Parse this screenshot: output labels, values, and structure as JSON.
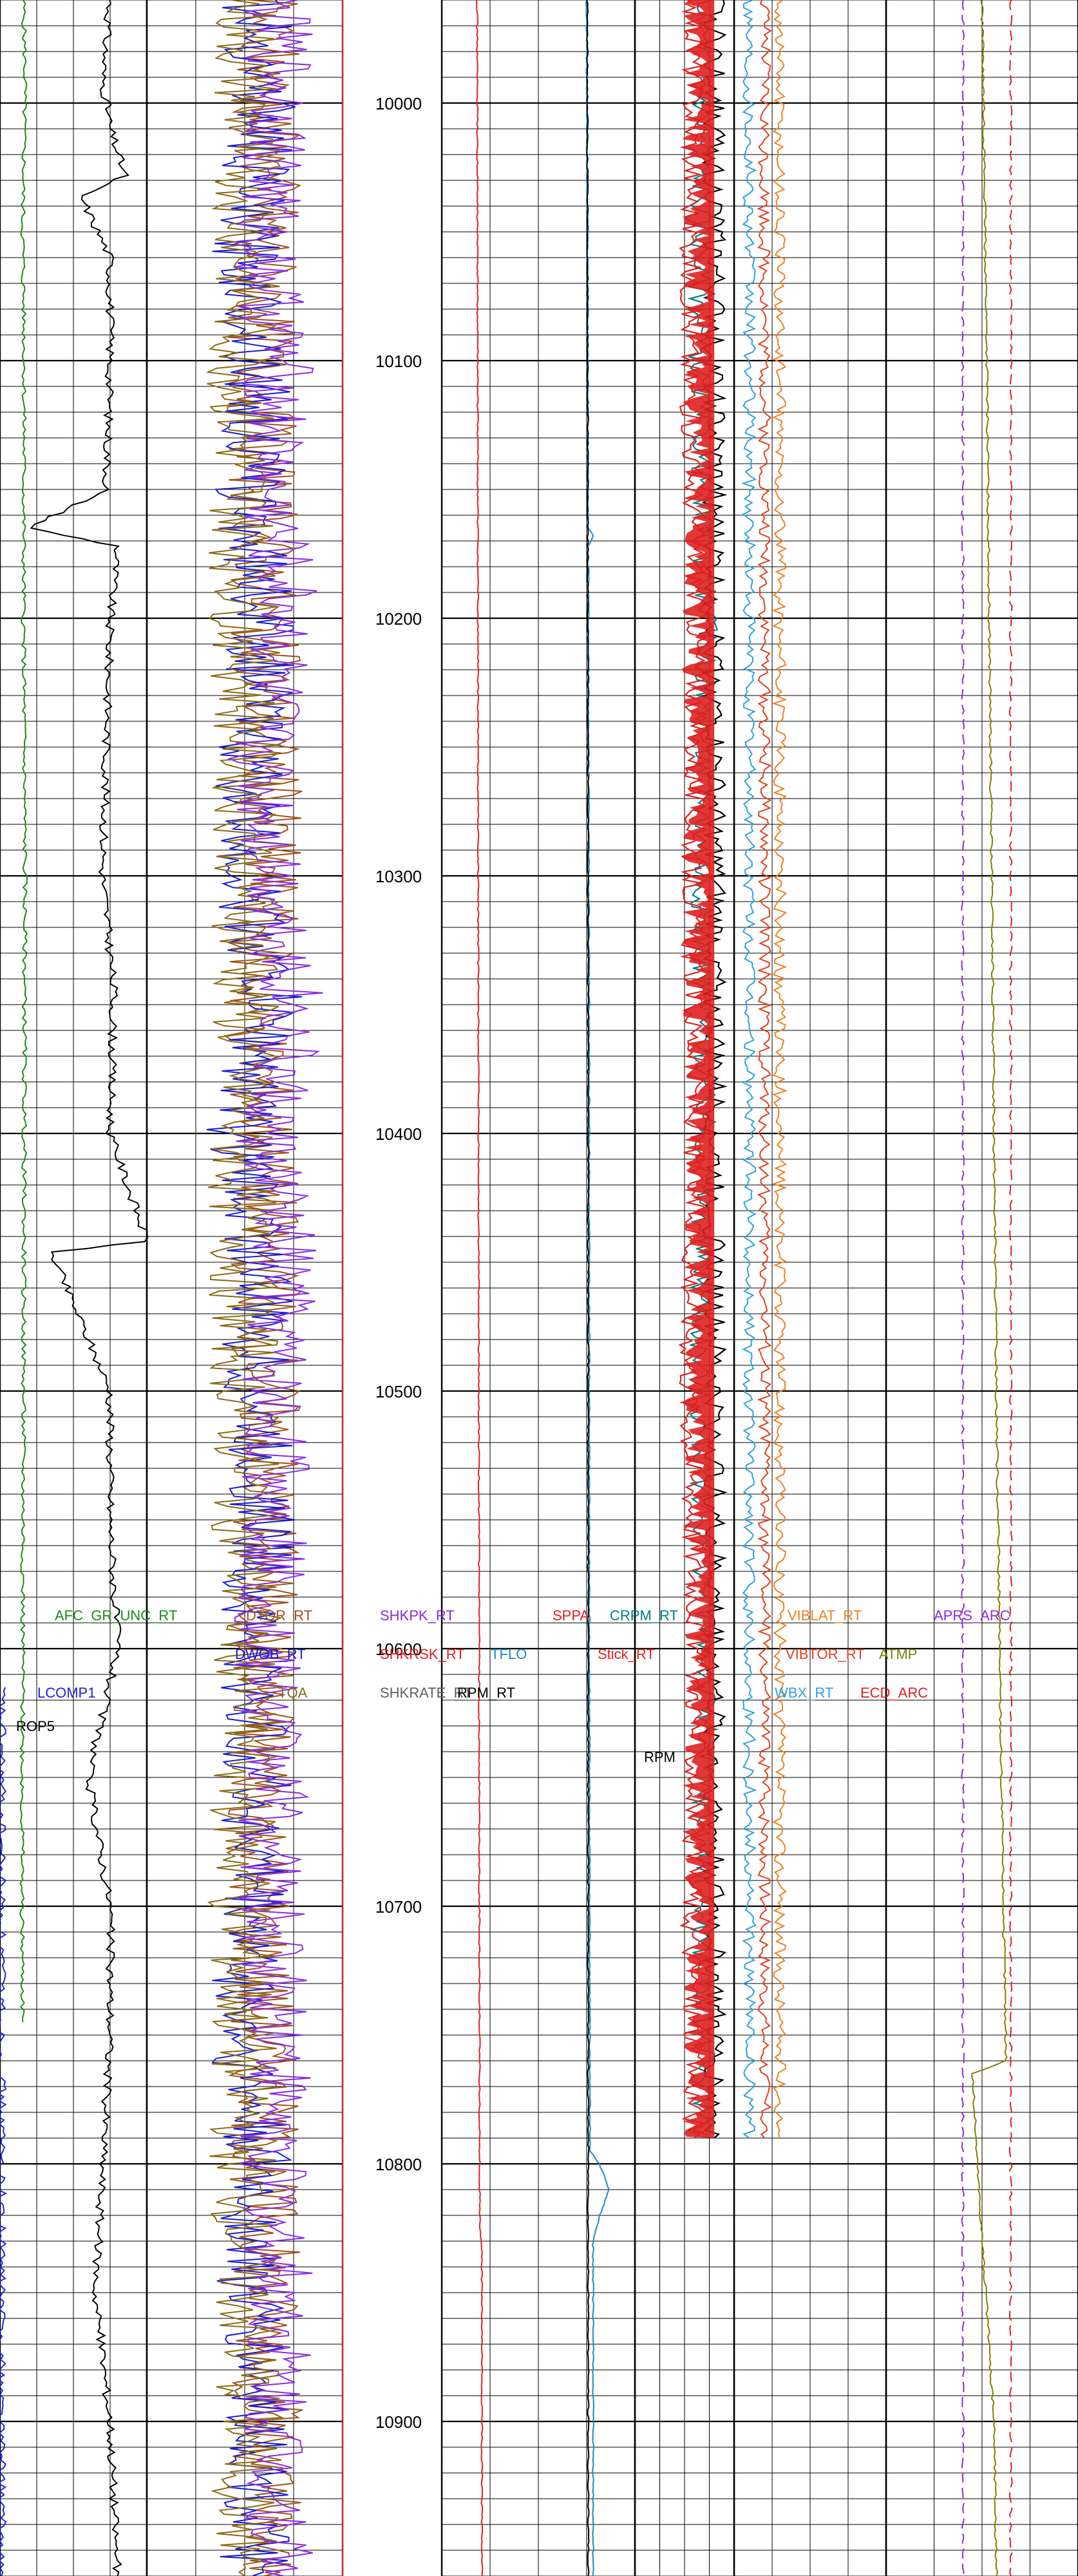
{
  "chart_data": {
    "type": "line",
    "title": "",
    "xlabel": "",
    "ylabel": "",
    "depth_range": [
      9960,
      10960
    ],
    "depth_ticks": [
      10000,
      10100,
      10200,
      10300,
      10400,
      10500,
      10600,
      10700,
      10800,
      10900
    ],
    "tracks": [
      {
        "name": "track-1",
        "curves": [
          {
            "name": "AFC_GR_UNC_RT",
            "color": "#1a8a1a",
            "label_depth": 10587,
            "points": [
              [
                9960,
                32
              ],
              [
                9990,
                34
              ],
              [
                10050,
                31
              ],
              [
                10100,
                33
              ],
              [
                10200,
                32
              ],
              [
                10300,
                34
              ],
              [
                10400,
                33
              ],
              [
                10500,
                32
              ],
              [
                10600,
                31
              ],
              [
                10700,
                30
              ],
              [
                10745,
                31
              ]
            ]
          },
          {
            "name": "LCOMP1",
            "color": "#2020e0",
            "label_depth": 10617,
            "points": [
              [
                10615,
                2
              ],
              [
                10960,
                2
              ]
            ]
          },
          {
            "name": "ROP5",
            "color": "#000000",
            "label_depth": 10630,
            "points": [
              [
                9960,
                150
              ],
              [
                9990,
                140
              ],
              [
                10010,
                150
              ],
              [
                10028,
                170
              ],
              [
                10036,
                110
              ],
              [
                10060,
                150
              ],
              [
                10100,
                150
              ],
              [
                10150,
                145
              ],
              [
                10165,
                40
              ],
              [
                10172,
                160
              ],
              [
                10200,
                150
              ],
              [
                10300,
                140
              ],
              [
                10345,
                155
              ],
              [
                10400,
                150
              ],
              [
                10442,
                200
              ],
              [
                10446,
                70
              ],
              [
                10500,
                150
              ],
              [
                10550,
                150
              ],
              [
                10600,
                160
              ],
              [
                10650,
                120
              ],
              [
                10700,
                150
              ],
              [
                10750,
                150
              ],
              [
                10800,
                140
              ],
              [
                10850,
                130
              ],
              [
                10900,
                150
              ],
              [
                10960,
                160
              ]
            ]
          }
        ]
      },
      {
        "name": "track-2",
        "curves": [
          {
            "name": "DTOR_RT",
            "color": "#a0521a",
            "label_depth": 10587,
            "points": [
              [
                9960,
                60
              ],
              [
                10050,
                62
              ],
              [
                10100,
                58
              ],
              [
                10200,
                60
              ],
              [
                10300,
                62
              ],
              [
                10350,
                56
              ],
              [
                10400,
                60
              ],
              [
                10500,
                62
              ],
              [
                10600,
                60
              ],
              [
                10700,
                58
              ],
              [
                10800,
                60
              ],
              [
                10900,
                62
              ],
              [
                10960,
                60
              ]
            ]
          },
          {
            "name": "DWOB_RT",
            "color": "#1a1ad8",
            "label_depth": 10602,
            "points": [
              [
                9960,
                55
              ],
              [
                10000,
                60
              ],
              [
                10050,
                50
              ],
              [
                10100,
                58
              ],
              [
                10150,
                52
              ],
              [
                10200,
                60
              ],
              [
                10250,
                54
              ],
              [
                10300,
                50
              ],
              [
                10350,
                62
              ],
              [
                10400,
                48
              ],
              [
                10450,
                58
              ],
              [
                10500,
                54
              ],
              [
                10550,
                60
              ],
              [
                10600,
                52
              ],
              [
                10650,
                56
              ],
              [
                10700,
                54
              ],
              [
                10750,
                48
              ],
              [
                10800,
                56
              ],
              [
                10850,
                52
              ],
              [
                10900,
                58
              ],
              [
                10960,
                54
              ]
            ]
          },
          {
            "name": "TQA",
            "color": "#8b6a12",
            "label_depth": 10617,
            "points": [
              [
                9960,
                50
              ],
              [
                10050,
                52
              ],
              [
                10100,
                48
              ],
              [
                10200,
                50
              ],
              [
                10300,
                52
              ],
              [
                10400,
                48
              ],
              [
                10500,
                50
              ],
              [
                10600,
                52
              ],
              [
                10700,
                48
              ],
              [
                10800,
                50
              ],
              [
                10900,
                52
              ],
              [
                10960,
                50
              ]
            ]
          },
          {
            "name": "SHKPK_RT",
            "color": "#8a2be2",
            "label_depth": 10587,
            "points": [
              [
                9960,
                65
              ],
              [
                10000,
                70
              ],
              [
                10050,
                60
              ],
              [
                10100,
                68
              ],
              [
                10150,
                62
              ],
              [
                10200,
                72
              ],
              [
                10250,
                58
              ],
              [
                10300,
                66
              ],
              [
                10350,
                74
              ],
              [
                10400,
                62
              ],
              [
                10450,
                70
              ],
              [
                10500,
                64
              ],
              [
                10550,
                68
              ],
              [
                10600,
                60
              ],
              [
                10650,
                66
              ],
              [
                10700,
                62
              ],
              [
                10750,
                70
              ],
              [
                10800,
                64
              ],
              [
                10850,
                68
              ],
              [
                10900,
                66
              ],
              [
                10960,
                70
              ]
            ]
          }
        ]
      },
      {
        "name": "track-3",
        "curves": [
          {
            "name": "SHKRATE_RT",
            "color": "#606060",
            "label_depth": 10617,
            "points": [
              [
                9960,
                0
              ],
              [
                10960,
                0
              ]
            ]
          },
          {
            "name": "SHKRSK_RT",
            "color": "#e02020",
            "label_depth": 10602,
            "points": [
              [
                9960,
                0
              ],
              [
                10960,
                0
              ]
            ]
          }
        ]
      },
      {
        "name": "track-4",
        "curves": [
          {
            "name": "SPPA",
            "color": "#e02020",
            "label_depth": 10587,
            "points": [
              [
                9960,
                110
              ],
              [
                10170,
                112
              ],
              [
                10400,
                114
              ],
              [
                10600,
                116
              ],
              [
                10825,
                118
              ],
              [
                10830,
                124
              ],
              [
                10960,
                125
              ]
            ]
          },
          {
            "name": "TFLO",
            "color": "#1a8ac8",
            "label_depth": 10602,
            "points": [
              [
                9960,
                450
              ],
              [
                10165,
                455
              ],
              [
                10168,
                470
              ],
              [
                10172,
                455
              ],
              [
                10400,
                458
              ],
              [
                10600,
                458
              ],
              [
                10795,
                460
              ],
              [
                10800,
                490
              ],
              [
                10810,
                520
              ],
              [
                10820,
                490
              ],
              [
                10830,
                470
              ],
              [
                10960,
                470
              ]
            ]
          },
          {
            "name": "RPM_RT",
            "color": "#000000",
            "label_depth": 10617,
            "points": [
              [
                9960,
                452
              ],
              [
                10400,
                455
              ],
              [
                10800,
                455
              ],
              [
                10960,
                455
              ]
            ]
          }
        ]
      },
      {
        "name": "track-5",
        "curves": [
          {
            "name": "CRPM_RT",
            "color": "#008080",
            "label_depth": 10587,
            "points": [
              [
                9960,
                140
              ],
              [
                10100,
                130
              ],
              [
                10200,
                145
              ],
              [
                10300,
                135
              ],
              [
                10400,
                140
              ],
              [
                10500,
                130
              ],
              [
                10600,
                145
              ],
              [
                10700,
                135
              ],
              [
                10790,
                140
              ]
            ]
          },
          {
            "name": "Stick_RT",
            "color": "#e02020",
            "label_depth": 10602,
            "points": [
              [
                9960,
                120
              ],
              [
                10100,
                110
              ],
              [
                10200,
                125
              ],
              [
                10300,
                115
              ],
              [
                10400,
                120
              ],
              [
                10500,
                110
              ],
              [
                10600,
                125
              ],
              [
                10700,
                115
              ],
              [
                10790,
                120
              ]
            ]
          },
          {
            "name": "RPM",
            "color": "#000000",
            "label_depth": 10642,
            "points": [
              [
                9960,
                160
              ],
              [
                10790,
                160
              ]
            ]
          }
        ]
      },
      {
        "name": "track-6",
        "curves": [
          {
            "name": "VIBLAT_RT",
            "color": "#f08020",
            "label_depth": 10587,
            "points": [
              [
                9960,
                3
              ],
              [
                10200,
                3
              ],
              [
                10400,
                3
              ],
              [
                10600,
                3
              ],
              [
                10790,
                3
              ]
            ]
          },
          {
            "name": "VIBTOR_RT",
            "color": "#e04020",
            "label_depth": 10602,
            "points": [
              [
                9960,
                2
              ],
              [
                10790,
                2
              ]
            ]
          },
          {
            "name": "WBX_RT",
            "color": "#30a0e0",
            "label_depth": 10617,
            "points": [
              [
                9960,
                1
              ],
              [
                10790,
                1
              ]
            ]
          }
        ]
      },
      {
        "name": "track-7",
        "curves": [
          {
            "name": "APRS_ARC",
            "color": "#8a2be2",
            "label_depth": 10587,
            "points": [
              [
                9960,
                11.2
              ],
              [
                10960,
                11.2
              ]
            ]
          },
          {
            "name": "ATMP",
            "color": "#808000",
            "label_depth": 10602,
            "points": [
              [
                9960,
                12
              ],
              [
                10100,
                12.2
              ],
              [
                10300,
                12.4
              ],
              [
                10500,
                12.6
              ],
              [
                10650,
                12.8
              ],
              [
                10760,
                13
              ],
              [
                10765,
                11.6
              ],
              [
                10800,
                11.8
              ],
              [
                10900,
                12.5
              ],
              [
                10960,
                12.6
              ]
            ]
          },
          {
            "name": "ECD_ARC",
            "color": "#e02020",
            "label_depth": 10617,
            "points": [
              [
                9960,
                13.2
              ],
              [
                10960,
                13.2
              ]
            ]
          }
        ]
      }
    ],
    "grid": true
  }
}
